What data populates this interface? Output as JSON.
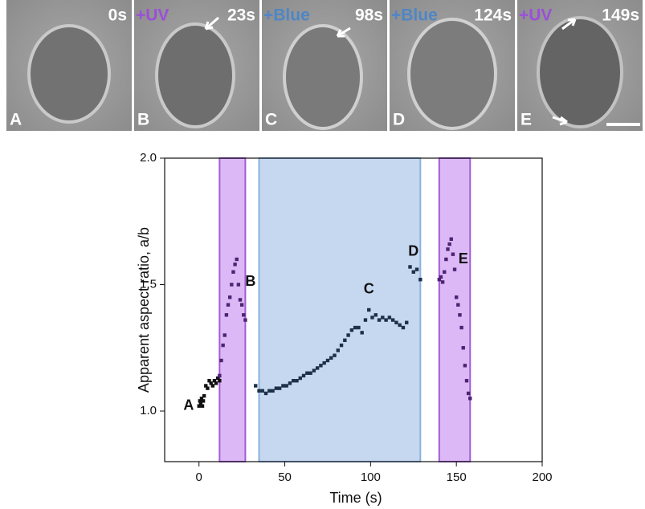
{
  "panels": [
    {
      "time": "0s",
      "label": "A"
    },
    {
      "treatment": "+UV",
      "time": "23s",
      "label": "B"
    },
    {
      "treatment": "+Blue",
      "time": "98s",
      "label": "C"
    },
    {
      "treatment": "+Blue",
      "time": "124s",
      "label": "D"
    },
    {
      "treatment": "+UV",
      "time": "149s",
      "label": "E"
    }
  ],
  "chart_data": {
    "type": "scatter",
    "x_label": "Time (s)",
    "y_label": "Apparent aspect ratio, a/b",
    "xlim": [
      -20,
      200
    ],
    "xticks": [
      0,
      50,
      100,
      150,
      200
    ],
    "ylim": [
      0.8,
      2.0
    ],
    "yticks": [
      {
        "value": 1,
        "label": "1.0"
      },
      1.5,
      {
        "value": 2,
        "label": "2.0"
      }
    ],
    "shaded_regions": [
      {
        "start": 12,
        "end": 27,
        "color": "#dcb9f6",
        "edge": "#a35bd8"
      },
      {
        "start": 35,
        "end": 129,
        "color": "#c6d8ef",
        "edge": "#8db1de"
      },
      {
        "start": 140,
        "end": 158,
        "color": "#dcb9f6",
        "edge": "#a35bd8"
      }
    ],
    "series": [
      {
        "color": "#111111",
        "x": [
          0,
          0.5,
          1,
          1.5,
          2,
          2.5,
          3,
          4,
          5,
          6,
          7,
          8,
          9,
          10,
          11,
          12
        ],
        "values": [
          1.02,
          1.04,
          1.03,
          1.05,
          1.02,
          1.04,
          1.06,
          1.1,
          1.09,
          1.12,
          1.11,
          1.1,
          1.12,
          1.11,
          1.13,
          1.12
        ]
      },
      {
        "color": "#4e2372",
        "x": [
          12,
          13,
          14,
          15,
          16,
          17,
          18,
          19,
          20,
          21,
          22,
          23,
          24,
          25,
          26,
          27
        ],
        "values": [
          1.14,
          1.2,
          1.26,
          1.3,
          1.38,
          1.42,
          1.45,
          1.5,
          1.55,
          1.58,
          1.6,
          1.5,
          1.44,
          1.42,
          1.38,
          1.36
        ]
      },
      {
        "color": "#1c3048",
        "x": [
          33,
          35,
          37,
          39,
          41,
          43,
          45,
          47,
          49,
          51,
          53,
          55,
          57,
          59,
          61,
          63,
          65,
          67,
          69,
          71,
          73,
          75,
          77,
          79,
          81,
          83,
          85,
          87,
          89,
          91,
          93,
          95,
          97,
          99,
          101,
          103,
          105,
          107,
          109,
          111,
          113,
          115,
          117,
          119,
          121,
          123,
          125,
          127,
          129
        ],
        "values": [
          1.1,
          1.08,
          1.08,
          1.07,
          1.08,
          1.08,
          1.09,
          1.09,
          1.1,
          1.1,
          1.11,
          1.12,
          1.12,
          1.13,
          1.14,
          1.15,
          1.15,
          1.16,
          1.17,
          1.18,
          1.19,
          1.2,
          1.21,
          1.22,
          1.24,
          1.26,
          1.28,
          1.3,
          1.32,
          1.33,
          1.33,
          1.31,
          1.36,
          1.4,
          1.37,
          1.38,
          1.36,
          1.37,
          1.36,
          1.37,
          1.36,
          1.35,
          1.34,
          1.33,
          1.35,
          1.57,
          1.55,
          1.56,
          1.52
        ]
      },
      {
        "color": "#4e2372",
        "x": [
          140,
          141,
          142,
          143,
          144,
          145,
          146,
          147,
          148,
          149,
          150,
          151,
          152,
          153,
          154,
          155,
          156,
          157,
          158
        ],
        "values": [
          1.52,
          1.53,
          1.51,
          1.55,
          1.6,
          1.64,
          1.66,
          1.68,
          1.62,
          1.56,
          1.45,
          1.42,
          1.38,
          1.33,
          1.25,
          1.18,
          1.12,
          1.07,
          1.05
        ]
      }
    ],
    "annotations": [
      {
        "text": "A",
        "x": -6,
        "y": 1.02
      },
      {
        "text": "B",
        "x": 30,
        "y": 1.51
      },
      {
        "text": "C",
        "x": 99,
        "y": 1.48
      },
      {
        "text": "D",
        "x": 125,
        "y": 1.63
      },
      {
        "text": "E",
        "x": 154,
        "y": 1.6
      }
    ]
  }
}
